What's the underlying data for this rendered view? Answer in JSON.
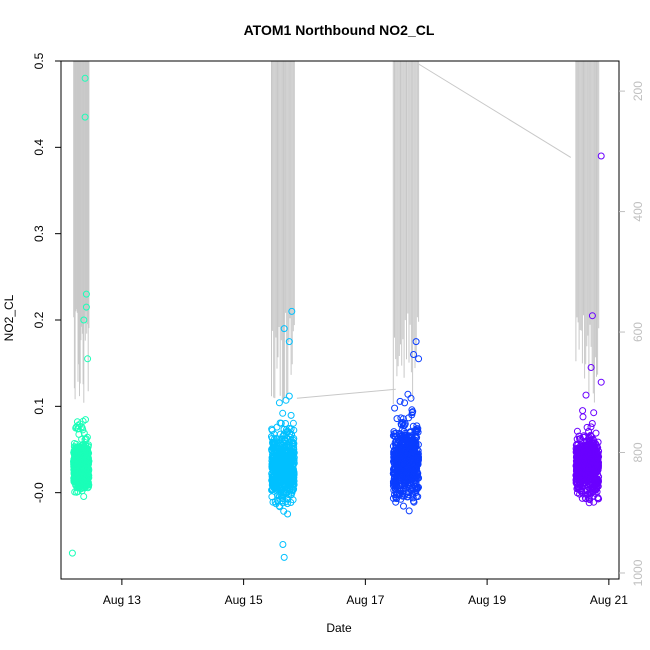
{
  "chart_data": {
    "type": "scatter",
    "title": "ATOM1 Northbound NO2_CL",
    "xlabel": "Date",
    "ylabel": "NO2_CL",
    "xlim": [
      "2016-08-12T00:00",
      "2016-08-21T04:00"
    ],
    "ylim": [
      -0.1,
      0.5
    ],
    "x_ticks": [
      "Aug 13",
      "Aug 15",
      "Aug 17",
      "Aug 19",
      "Aug 21"
    ],
    "x_tick_dates": [
      "2016-08-13",
      "2016-08-15",
      "2016-08-17",
      "2016-08-19",
      "2016-08-21"
    ],
    "y_ticks": [
      "-0.0",
      "0.1",
      "0.2",
      "0.3",
      "0.4",
      "0.5"
    ],
    "y_tick_values": [
      0.0,
      0.1,
      0.2,
      0.3,
      0.4,
      0.5
    ],
    "y2_ticks": [
      "200",
      "400",
      "600",
      "800",
      "1000"
    ],
    "y2_tick_values": [
      200,
      400,
      600,
      800,
      1000
    ],
    "y2lim": [
      1010,
      150
    ],
    "grid": false,
    "legend": "none",
    "colors": {
      "series_1": "#1affb8",
      "series_2": "#00c0ff",
      "series_3": "#0a3dff",
      "series_4": "#6a00ff",
      "secondary_line": "#c8c8c8"
    },
    "series": [
      {
        "start": "2016-08-12T05:00",
        "end": "2016-08-12T11:00",
        "center": 0.03,
        "spread": 0.02,
        "low": -0.07,
        "high": 0.48,
        "outliers": [
          {
            "t": "2016-08-12T09:30",
            "v": 0.48
          },
          {
            "t": "2016-08-12T09:30",
            "v": 0.435
          },
          {
            "t": "2016-08-12T10:00",
            "v": 0.23
          },
          {
            "t": "2016-08-12T10:00",
            "v": 0.215
          },
          {
            "t": "2016-08-12T09:00",
            "v": 0.2
          },
          {
            "t": "2016-08-12T10:30",
            "v": 0.155
          },
          {
            "t": "2016-08-12T04:30",
            "v": -0.07
          }
        ]
      },
      {
        "start": "2016-08-15T11:00",
        "end": "2016-08-15T20:00",
        "center": 0.03,
        "spread": 0.03,
        "low": -0.075,
        "high": 0.21,
        "outliers": [
          {
            "t": "2016-08-15T19:00",
            "v": 0.21
          },
          {
            "t": "2016-08-15T16:00",
            "v": 0.19
          },
          {
            "t": "2016-08-15T18:00",
            "v": 0.175
          },
          {
            "t": "2016-08-15T15:30",
            "v": -0.06
          },
          {
            "t": "2016-08-15T16:00",
            "v": -0.075
          }
        ]
      },
      {
        "start": "2016-08-17T11:00",
        "end": "2016-08-17T21:00",
        "center": 0.035,
        "spread": 0.03,
        "low": -0.027,
        "high": 0.175,
        "outliers": [
          {
            "t": "2016-08-17T20:00",
            "v": 0.175
          },
          {
            "t": "2016-08-17T19:00",
            "v": 0.16
          },
          {
            "t": "2016-08-17T21:00",
            "v": 0.155
          }
        ]
      },
      {
        "start": "2016-08-20T11:00",
        "end": "2016-08-20T20:00",
        "center": 0.03,
        "spread": 0.025,
        "low": -0.037,
        "high": 0.39,
        "outliers": [
          {
            "t": "2016-08-20T21:00",
            "v": 0.39
          },
          {
            "t": "2016-08-20T17:30",
            "v": 0.205
          },
          {
            "t": "2016-08-20T17:00",
            "v": 0.145
          },
          {
            "t": "2016-08-20T21:00",
            "v": 0.128
          },
          {
            "t": "2016-08-20T15:00",
            "v": 0.113
          }
        ]
      }
    ],
    "secondary_series": {
      "axis": "right",
      "connectors": [
        {
          "from": {
            "t": "2016-08-15T21:00",
            "v": 710
          },
          "to": {
            "t": "2016-08-17T12:00",
            "v": 695
          }
        },
        {
          "from": {
            "t": "2016-08-17T21:00",
            "v": 155
          },
          "to": {
            "t": "2016-08-20T09:00",
            "v": 310
          }
        }
      ]
    }
  }
}
